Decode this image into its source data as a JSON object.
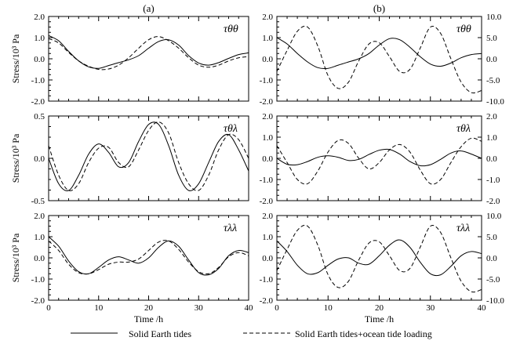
{
  "figure": {
    "legend": {
      "solid": "Solid Earth tides",
      "dashed": "Solid Earth tides+ocean tide loading"
    },
    "line_color": "#000000"
  },
  "chart_data": [
    {
      "type": "line",
      "column_label": "(a)",
      "symbol": "τθθ",
      "ylabel": "Stress/10³ Pa",
      "xlabel": "",
      "xlim": [
        0,
        40
      ],
      "ylim": [
        -2.0,
        2.0
      ],
      "yticks": [
        "2.0",
        "1.0",
        "0.0",
        "-1.0",
        "-2.0"
      ],
      "xticks": [],
      "series": [
        {
          "style": "solid",
          "x": [
            0,
            2,
            4,
            6,
            8,
            10,
            12,
            14,
            16,
            18,
            20,
            22,
            24,
            26,
            28,
            30,
            32,
            34,
            36,
            38,
            40
          ],
          "y": [
            1.1,
            0.85,
            0.35,
            -0.1,
            -0.38,
            -0.45,
            -0.32,
            -0.18,
            -0.05,
            0.15,
            0.5,
            0.82,
            0.9,
            0.65,
            0.15,
            -0.2,
            -0.3,
            -0.18,
            0.02,
            0.2,
            0.28
          ]
        },
        {
          "style": "dashed",
          "x": [
            0,
            2,
            4,
            6,
            8,
            10,
            12,
            14,
            16,
            18,
            20,
            22,
            24,
            26,
            28,
            30,
            32,
            34,
            36,
            38,
            40
          ],
          "y": [
            0.95,
            0.75,
            0.3,
            -0.1,
            -0.35,
            -0.5,
            -0.48,
            -0.3,
            0.05,
            0.5,
            0.9,
            1.05,
            0.85,
            0.5,
            0.05,
            -0.3,
            -0.4,
            -0.3,
            -0.1,
            0.05,
            0.1
          ]
        }
      ]
    },
    {
      "type": "line",
      "column_label": "(b)",
      "symbol": "τθθ",
      "ylabel": "",
      "xlabel": "",
      "xlim": [
        0,
        40
      ],
      "ylim": [
        -2.0,
        2.0
      ],
      "y2lim": [
        -10.0,
        10.0
      ],
      "yticks": [
        "2.0",
        "1.0",
        "0.0",
        "-1.0",
        "-2.0"
      ],
      "y2ticks": [
        "10.0",
        "5.0",
        "0.0",
        "-5.0",
        "-10.0"
      ],
      "xticks": [],
      "series": [
        {
          "style": "solid",
          "axis": "left",
          "x": [
            0,
            2,
            4,
            6,
            8,
            10,
            12,
            14,
            16,
            18,
            20,
            22,
            24,
            26,
            28,
            30,
            32,
            34,
            36,
            38,
            40
          ],
          "y": [
            1.0,
            0.7,
            0.25,
            -0.15,
            -0.42,
            -0.45,
            -0.3,
            -0.15,
            0.0,
            0.25,
            0.65,
            0.95,
            0.9,
            0.55,
            0.1,
            -0.25,
            -0.35,
            -0.2,
            0.05,
            0.2,
            0.25
          ]
        },
        {
          "style": "dashed",
          "axis": "right",
          "x": [
            0,
            2,
            4,
            6,
            8,
            10,
            12,
            14,
            16,
            18,
            20,
            22,
            24,
            26,
            28,
            30,
            32,
            34,
            36,
            38,
            40
          ],
          "y": [
            -3.0,
            2.0,
            6.5,
            7.5,
            3.0,
            -4.0,
            -7.0,
            -5.5,
            -0.5,
            3.5,
            3.8,
            0.5,
            -3.0,
            -2.5,
            2.5,
            7.5,
            6.0,
            0.0,
            -5.5,
            -8.0,
            -7.5
          ]
        }
      ]
    },
    {
      "type": "line",
      "symbol": "τθλ",
      "ylabel": "Stress/10³ Pa",
      "xlabel": "",
      "xlim": [
        0,
        40
      ],
      "ylim": [
        -0.5,
        0.5
      ],
      "yticks": [
        "0.5",
        "0.0",
        "-0.5"
      ],
      "xticks": [],
      "series": [
        {
          "style": "solid",
          "x": [
            0,
            2,
            4,
            6,
            8,
            10,
            12,
            14,
            16,
            18,
            20,
            22,
            24,
            26,
            28,
            30,
            32,
            34,
            36,
            38,
            40
          ],
          "y": [
            0.0,
            -0.3,
            -0.38,
            -0.2,
            0.05,
            0.17,
            0.07,
            -0.1,
            -0.05,
            0.2,
            0.4,
            0.4,
            0.15,
            -0.2,
            -0.38,
            -0.3,
            -0.05,
            0.2,
            0.28,
            0.1,
            -0.15
          ]
        },
        {
          "style": "dashed",
          "x": [
            0,
            2,
            4,
            6,
            8,
            10,
            12,
            14,
            16,
            18,
            20,
            22,
            24,
            26,
            28,
            30,
            32,
            34,
            36,
            38,
            40
          ],
          "y": [
            0.15,
            -0.2,
            -0.38,
            -0.3,
            -0.05,
            0.12,
            0.13,
            -0.05,
            -0.1,
            0.1,
            0.33,
            0.43,
            0.3,
            -0.05,
            -0.3,
            -0.38,
            -0.2,
            0.1,
            0.28,
            0.22,
            0.0
          ]
        }
      ]
    },
    {
      "type": "line",
      "symbol": "τθλ",
      "ylabel": "",
      "xlabel": "",
      "xlim": [
        0,
        40
      ],
      "ylim": [
        -2.0,
        2.0
      ],
      "y2lim": [
        -2.0,
        2.0
      ],
      "yticks": [
        "2.0",
        "1.0",
        "0.0",
        "-1.0",
        "-2.0"
      ],
      "y2ticks": [
        "2.0",
        "1.0",
        "0.0",
        "-1.0",
        "-2.0"
      ],
      "xticks": [],
      "series": [
        {
          "style": "solid",
          "axis": "left",
          "x": [
            0,
            2,
            4,
            6,
            8,
            10,
            12,
            14,
            16,
            18,
            20,
            22,
            24,
            26,
            28,
            30,
            32,
            34,
            36,
            38,
            40
          ],
          "y": [
            0.0,
            -0.28,
            -0.3,
            -0.15,
            0.05,
            0.12,
            0.05,
            -0.1,
            -0.05,
            0.18,
            0.38,
            0.42,
            0.2,
            -0.15,
            -0.35,
            -0.3,
            -0.05,
            0.25,
            0.35,
            0.2,
            0.0
          ]
        },
        {
          "style": "dashed",
          "axis": "right",
          "x": [
            0,
            2,
            4,
            6,
            8,
            10,
            12,
            14,
            16,
            18,
            20,
            22,
            24,
            26,
            28,
            30,
            32,
            34,
            36,
            38,
            40
          ],
          "y": [
            0.6,
            -0.2,
            -1.0,
            -1.2,
            -0.6,
            0.3,
            0.85,
            0.7,
            0.0,
            -0.5,
            -0.2,
            0.4,
            0.65,
            0.3,
            -0.55,
            -1.2,
            -1.0,
            -0.2,
            0.55,
            0.95,
            0.8
          ]
        }
      ]
    },
    {
      "type": "line",
      "symbol": "τλλ",
      "ylabel": "Stress/10³ Pa",
      "xlabel": "Time /h",
      "xlim": [
        0,
        40
      ],
      "ylim": [
        -2.0,
        2.0
      ],
      "yticks": [
        "2.0",
        "1.0",
        "0.0",
        "-1.0",
        "-2.0"
      ],
      "xticks": [
        "0",
        "10",
        "20",
        "30",
        "40"
      ],
      "series": [
        {
          "style": "solid",
          "x": [
            0,
            2,
            4,
            6,
            8,
            10,
            12,
            14,
            16,
            18,
            20,
            22,
            24,
            26,
            28,
            30,
            32,
            34,
            36,
            38,
            40
          ],
          "y": [
            1.0,
            0.55,
            -0.15,
            -0.65,
            -0.75,
            -0.45,
            -0.1,
            0.05,
            -0.1,
            -0.25,
            0.0,
            0.5,
            0.8,
            0.55,
            -0.1,
            -0.7,
            -0.8,
            -0.5,
            0.1,
            0.35,
            0.25
          ]
        },
        {
          "style": "dashed",
          "x": [
            0,
            2,
            4,
            6,
            8,
            10,
            12,
            14,
            16,
            18,
            20,
            22,
            24,
            26,
            28,
            30,
            32,
            34,
            36,
            38,
            40
          ],
          "y": [
            0.8,
            0.35,
            -0.3,
            -0.7,
            -0.75,
            -0.55,
            -0.3,
            -0.2,
            -0.2,
            -0.05,
            0.35,
            0.75,
            0.8,
            0.4,
            -0.2,
            -0.65,
            -0.75,
            -0.45,
            0.05,
            0.25,
            0.1
          ]
        }
      ]
    },
    {
      "type": "line",
      "symbol": "τλλ",
      "ylabel": "",
      "xlabel": "Time /h",
      "xlim": [
        0,
        40
      ],
      "ylim": [
        -2.0,
        2.0
      ],
      "y2lim": [
        -10.0,
        10.0
      ],
      "yticks": [
        "2.0",
        "1.0",
        "0.0",
        "-1.0",
        "-2.0"
      ],
      "y2ticks": [
        "10.0",
        "5.0",
        "0.0",
        "-5.0",
        "-10.0"
      ],
      "xticks": [
        "0",
        "10",
        "20",
        "30",
        "40"
      ],
      "series": [
        {
          "style": "solid",
          "axis": "left",
          "x": [
            0,
            2,
            4,
            6,
            8,
            10,
            12,
            14,
            16,
            18,
            20,
            22,
            24,
            26,
            28,
            30,
            32,
            34,
            36,
            38,
            40
          ],
          "y": [
            0.8,
            0.3,
            -0.35,
            -0.75,
            -0.7,
            -0.35,
            -0.05,
            0.0,
            -0.25,
            -0.3,
            0.1,
            0.6,
            0.85,
            0.5,
            -0.2,
            -0.75,
            -0.8,
            -0.4,
            0.1,
            0.3,
            0.2
          ]
        },
        {
          "style": "dashed",
          "axis": "right",
          "x": [
            0,
            2,
            4,
            6,
            8,
            10,
            12,
            14,
            16,
            18,
            20,
            22,
            24,
            26,
            28,
            30,
            32,
            34,
            36,
            38,
            40
          ],
          "y": [
            -3.0,
            2.0,
            6.5,
            7.5,
            3.0,
            -4.0,
            -7.0,
            -5.5,
            -0.5,
            3.5,
            3.8,
            0.5,
            -3.0,
            -2.5,
            2.5,
            7.5,
            6.0,
            0.0,
            -5.5,
            -8.0,
            -7.5
          ]
        }
      ]
    }
  ]
}
